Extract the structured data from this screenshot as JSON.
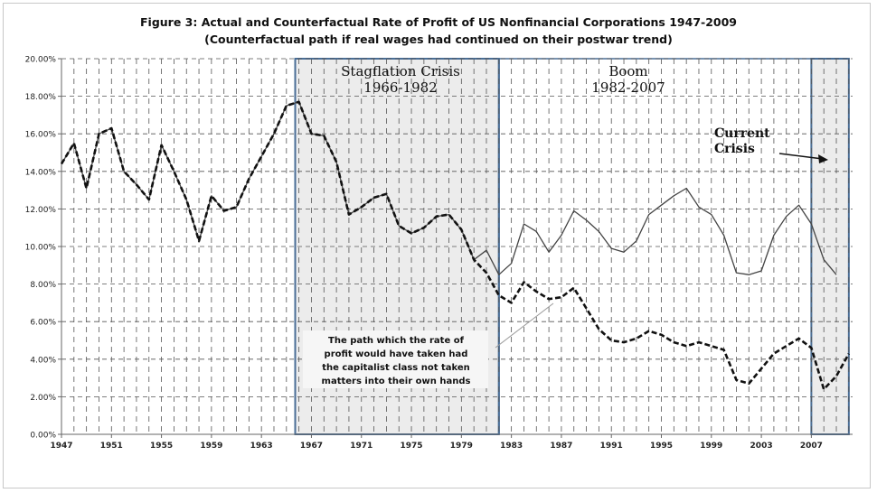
{
  "title": "Figure 3: Actual and Counterfactual  Rate of Profit of US Nonfinancial Corporations 1947-2009",
  "subtitle": "(Counterfactual path if real wages had continued on their postwar trend)",
  "chart_data": {
    "type": "line",
    "ylim": [
      0,
      20
    ],
    "xlim": [
      1947,
      2009
    ],
    "y_ticks": [
      "0.00%",
      "2.00%",
      "4.00%",
      "6.00%",
      "8.00%",
      "10.00%",
      "12.00%",
      "14.00%",
      "16.00%",
      "18.00%",
      "20.00%"
    ],
    "x_ticks": [
      "1947",
      "1951",
      "1955",
      "1959",
      "1963",
      "1967",
      "1971",
      "1975",
      "1979",
      "1983",
      "1987",
      "1991",
      "1995",
      "1999",
      "2003",
      "2007"
    ],
    "grid": true,
    "series": [
      {
        "style": "thin-solid",
        "x": [
          1947,
          1948,
          1949,
          1950,
          1951,
          1952,
          1953,
          1954,
          1955,
          1956,
          1957,
          1958,
          1959,
          1960,
          1961,
          1962,
          1963,
          1964,
          1965,
          1966,
          1967,
          1968,
          1969,
          1970,
          1971,
          1972,
          1973,
          1974,
          1975,
          1976,
          1977,
          1978,
          1979,
          1980,
          1981,
          1982,
          1983,
          1984,
          1985,
          1986,
          1987,
          1988,
          1989,
          1990,
          1991,
          1992,
          1993,
          1994,
          1995,
          1996,
          1997,
          1998,
          1999,
          2000,
          2001,
          2002,
          2003,
          2004,
          2005,
          2006,
          2007,
          2008,
          2009
        ],
        "values": [
          14.4,
          15.5,
          13.1,
          16.0,
          16.3,
          14.0,
          13.3,
          12.5,
          15.4,
          14.0,
          12.5,
          10.3,
          12.7,
          11.9,
          12.1,
          13.6,
          14.8,
          16.0,
          17.5,
          17.7,
          16.0,
          15.9,
          14.5,
          11.7,
          12.1,
          12.6,
          12.8,
          11.1,
          10.7,
          11.0,
          11.6,
          11.7,
          10.9,
          9.3,
          9.8,
          8.5,
          9.1,
          11.2,
          10.8,
          9.7,
          10.6,
          11.9,
          11.4,
          10.8,
          9.9,
          9.7,
          10.3,
          11.7,
          12.2,
          12.7,
          13.1,
          12.1,
          11.7,
          10.6,
          8.6,
          8.5,
          8.7,
          10.6,
          11.6,
          12.2,
          11.2,
          9.3,
          8.5
        ]
      },
      {
        "style": "thick-dashed",
        "x": [
          1947,
          1948,
          1949,
          1950,
          1951,
          1952,
          1953,
          1954,
          1955,
          1956,
          1957,
          1958,
          1959,
          1960,
          1961,
          1962,
          1963,
          1964,
          1965,
          1966,
          1967,
          1968,
          1969,
          1970,
          1971,
          1972,
          1973,
          1974,
          1975,
          1976,
          1977,
          1978,
          1979,
          1980,
          1981,
          1982,
          1983,
          1984,
          1985,
          1986,
          1987,
          1988,
          1989,
          1990,
          1991,
          1992,
          1993,
          1994,
          1995,
          1996,
          1997,
          1998,
          1999,
          2000,
          2001,
          2002,
          2003,
          2004,
          2005,
          2006,
          2007,
          2008,
          2009,
          2010
        ],
        "values": [
          14.4,
          15.5,
          13.1,
          16.0,
          16.3,
          14.0,
          13.3,
          12.5,
          15.4,
          14.0,
          12.5,
          10.3,
          12.7,
          11.9,
          12.1,
          13.6,
          14.8,
          16.0,
          17.5,
          17.7,
          16.0,
          15.9,
          14.5,
          11.7,
          12.1,
          12.6,
          12.8,
          11.1,
          10.7,
          11.0,
          11.6,
          11.7,
          10.9,
          9.3,
          8.6,
          7.4,
          7.0,
          8.1,
          7.6,
          7.2,
          7.3,
          7.8,
          6.7,
          5.6,
          5.0,
          4.9,
          5.1,
          5.5,
          5.3,
          4.9,
          4.7,
          4.9,
          4.7,
          4.5,
          2.9,
          2.7,
          3.5,
          4.3,
          4.7,
          5.1,
          4.6,
          2.4,
          3.1,
          4.3
        ]
      }
    ],
    "shaded_regions": [
      {
        "from": 1965.7,
        "to": 1982.0,
        "label_line1": "Stagflation Crisis",
        "label_line2": "1966-1982"
      },
      {
        "from": 2007.0,
        "to": 2010.0,
        "label_line1": "Current",
        "label_line2": "Crisis"
      }
    ],
    "boom_region": {
      "from": 1982.0,
      "to": 2007.0,
      "label_line1": "Boom",
      "label_line2": "1982-2007"
    },
    "annotation": {
      "lines": [
        "The path which the rate of",
        "profit would have taken  had",
        "the capitalist class not taken",
        "matters into their own hands"
      ]
    }
  }
}
